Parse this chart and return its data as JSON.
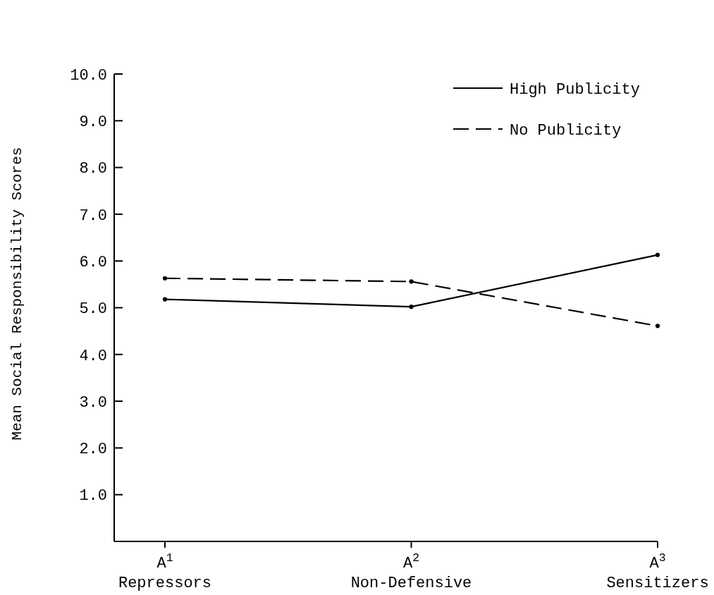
{
  "chart_data": {
    "type": "line",
    "ylabel": "Mean Social Responsibility Scores",
    "categories": [
      "A$^{1}$\nRepressors",
      "A$^{2}$\nNon-Defensive",
      "A$^{3}$\nSensitizers"
    ],
    "series": [
      {
        "name": "High Publicity",
        "color": "#000000",
        "line_style": "solid",
        "values": [
          5.18,
          5.02,
          6.13
        ]
      },
      {
        "name": "No Publicity",
        "color": "#000000",
        "line_style": "dashed",
        "values": [
          5.63,
          5.56,
          4.61
        ]
      }
    ],
    "ylim": [
      0,
      10
    ],
    "yticks": [
      {
        "value": 1,
        "label": "1.0"
      },
      {
        "value": 2,
        "label": "2.0"
      },
      {
        "value": 3,
        "label": "3.0"
      },
      {
        "value": 4,
        "label": "4.0"
      },
      {
        "value": 5,
        "label": "5.0"
      },
      {
        "value": 6,
        "label": "6.0"
      },
      {
        "value": 7,
        "label": "7.0"
      },
      {
        "value": 8,
        "label": "8.0"
      },
      {
        "value": 9,
        "label": "9.0"
      },
      {
        "value": 10,
        "label": "10.0"
      }
    ],
    "marker": "circle",
    "legend": "top right",
    "grid": false
  }
}
